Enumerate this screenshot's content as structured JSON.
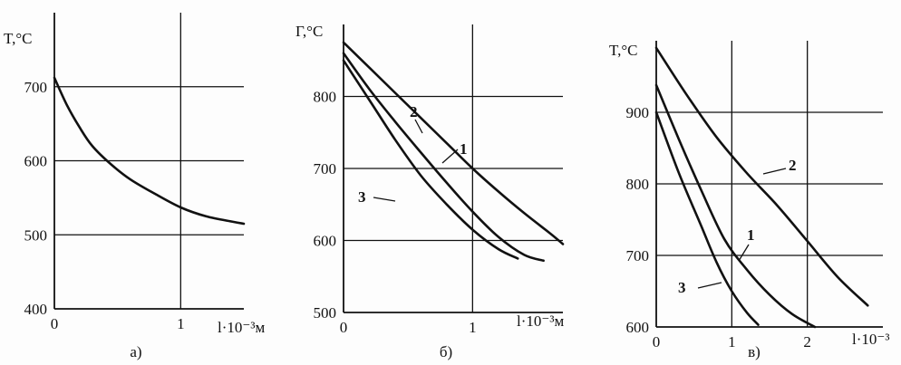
{
  "chart_data": [
    {
      "type": "line",
      "panel_label": "а)",
      "ylabel": "T,°C",
      "xlabel": "l·10⁻³м",
      "xlim": [
        0,
        1.5
      ],
      "ylim": [
        400,
        800
      ],
      "xticks": [
        0,
        1
      ],
      "yticks": [
        400,
        500,
        600,
        700
      ],
      "grid": true,
      "series": [
        {
          "x": [
            0,
            0.1,
            0.2,
            0.3,
            0.45,
            0.6,
            0.8,
            1.0,
            1.2,
            1.4,
            1.5
          ],
          "values": [
            712,
            675,
            645,
            620,
            595,
            575,
            555,
            537,
            525,
            518,
            515
          ]
        }
      ]
    },
    {
      "type": "line",
      "panel_label": "б)",
      "ylabel": "Г,°С",
      "xlabel": "l·10⁻³м",
      "xlim": [
        0,
        1.7
      ],
      "ylim": [
        500,
        900
      ],
      "xticks": [
        0,
        1
      ],
      "yticks": [
        500,
        600,
        700,
        800
      ],
      "grid": true,
      "series": [
        {
          "name": "1",
          "x": [
            0,
            0.2,
            0.4,
            0.6,
            0.8,
            1.0,
            1.2,
            1.4,
            1.55
          ],
          "values": [
            860,
            810,
            765,
            722,
            680,
            640,
            605,
            580,
            572
          ]
        },
        {
          "name": "2",
          "x": [
            0,
            0.2,
            0.4,
            0.6,
            0.8,
            1.0,
            1.2,
            1.4,
            1.6,
            1.7
          ],
          "values": [
            875,
            840,
            805,
            770,
            735,
            700,
            668,
            638,
            610,
            595
          ]
        },
        {
          "name": "3",
          "x": [
            0,
            0.2,
            0.4,
            0.6,
            0.8,
            1.0,
            1.2,
            1.35
          ],
          "values": [
            850,
            795,
            740,
            690,
            650,
            615,
            588,
            575
          ]
        }
      ]
    },
    {
      "type": "line",
      "panel_label": "в)",
      "ylabel": "T,°C",
      "xlabel": "l·10⁻³",
      "xlim": [
        0,
        3
      ],
      "ylim": [
        600,
        1000
      ],
      "xticks": [
        0,
        1,
        2
      ],
      "yticks": [
        600,
        700,
        800,
        900
      ],
      "grid": true,
      "series": [
        {
          "name": "1",
          "x": [
            0,
            0.3,
            0.6,
            0.9,
            1.2,
            1.5,
            1.8,
            2.1
          ],
          "values": [
            938,
            862,
            790,
            723,
            680,
            645,
            618,
            600
          ]
        },
        {
          "name": "2",
          "x": [
            0,
            0.4,
            0.8,
            1.2,
            1.6,
            2.0,
            2.4,
            2.8
          ],
          "values": [
            990,
            925,
            865,
            815,
            770,
            720,
            670,
            630
          ]
        },
        {
          "name": "3",
          "x": [
            0,
            0.3,
            0.6,
            0.8,
            1.0,
            1.2,
            1.35
          ],
          "values": [
            900,
            815,
            740,
            690,
            650,
            620,
            603
          ]
        }
      ]
    }
  ]
}
